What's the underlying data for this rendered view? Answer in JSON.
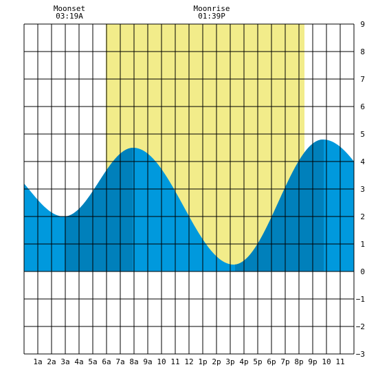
{
  "chart_data": {
    "type": "area",
    "title": "",
    "xlabel": "",
    "ylabel": "",
    "x_tick_labels": [
      "1a",
      "2a",
      "3a",
      "4a",
      "5a",
      "6a",
      "7a",
      "8a",
      "9a",
      "10",
      "11",
      "12",
      "1p",
      "2p",
      "3p",
      "4p",
      "5p",
      "6p",
      "7p",
      "8p",
      "9p",
      "10",
      "11"
    ],
    "x_range_hours": [
      0,
      24
    ],
    "ylim": [
      -3,
      9
    ],
    "y_ticks": [
      "−3",
      "−2",
      "−1",
      "0",
      "1",
      "2",
      "3",
      "4",
      "5",
      "6",
      "7",
      "8",
      "9"
    ],
    "grid": true,
    "daylight_hours": [
      5.95,
      20.4
    ],
    "moon_events": [
      {
        "name": "Moonset",
        "time": "03:19A",
        "hour": 3.3
      },
      {
        "name": "Moonrise",
        "time": "01:39P",
        "hour": 13.65
      }
    ],
    "tide_extremes": [
      {
        "hour": 2.9,
        "height": 2.0,
        "type": "low"
      },
      {
        "hour": 7.95,
        "height": 4.5,
        "type": "high"
      },
      {
        "hour": 15.25,
        "height": 0.25,
        "type": "low"
      },
      {
        "hour": 21.75,
        "height": 4.8,
        "type": "high"
      }
    ],
    "start_height": 3.2,
    "end_height": 4.0,
    "dark_bands_hours": [
      [
        2.95,
        7.9
      ],
      [
        15.35,
        21.8
      ]
    ],
    "colors": {
      "tide_light": "#0099dd",
      "tide_dark": "#0080bb",
      "daylight": "#f2ec8a",
      "grid": "#000000",
      "background": "#ffffff"
    }
  }
}
